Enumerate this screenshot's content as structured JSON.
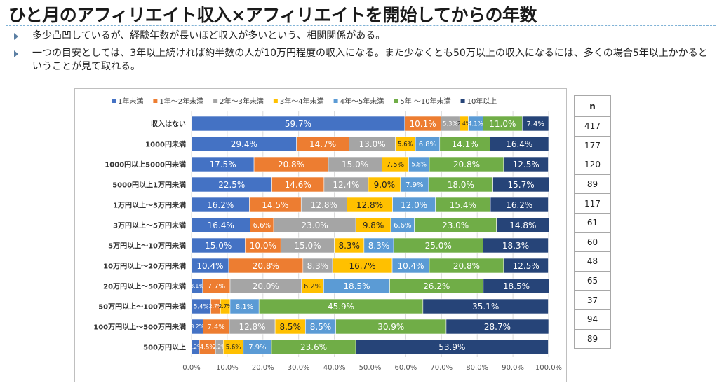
{
  "title": "ひと月のアフィリエイト収入×アフィリエイトを開始してからの年数",
  "bullets": [
    "多少凸凹しているが、経験年数が長いほど収入が多いという、相関関係がある。",
    "一つの目安としては、3年以上続ければ約半数の人が10万円程度の収入になる。また少なくとも50万以上の収入になるには、多くの場合5年以上かかるということが見て取れる。"
  ],
  "n_table": {
    "header": "n",
    "values": [
      "417",
      "177",
      "120",
      "89",
      "117",
      "61",
      "60",
      "48",
      "65",
      "37",
      "94",
      "89"
    ]
  },
  "colors": [
    "#4472c4",
    "#ed7d31",
    "#a5a5a5",
    "#ffc000",
    "#5b9bd5",
    "#70ad47",
    "#264478"
  ],
  "chart_data": {
    "type": "bar",
    "orientation": "horizontal",
    "stacked": "percent",
    "categories": [
      "収入はない",
      "1000円未満",
      "1000円以上5000円未満",
      "5000円以上1万円未満",
      "1万円以上～3万円未満",
      "3万円以上～5万円未満",
      "5万円以上～10万円未満",
      "10万円以上～20万円未満",
      "20万円以上～50万円未満",
      "50万円以上～100万円未満",
      "100万円以上～500万円未満",
      "500万円以上"
    ],
    "series": [
      {
        "name": "1年未満",
        "values": [
          59.7,
          29.4,
          17.5,
          22.5,
          16.2,
          16.4,
          15.0,
          10.4,
          3.1,
          5.4,
          3.2,
          2.2
        ],
        "labels": [
          "59.7%",
          "29.4%",
          "17.5%",
          "22.5%",
          "16.2%",
          "16.4%",
          "15.0%",
          "10.4%",
          "3.1%",
          "5.4%",
          "3.2%",
          "2.2%"
        ]
      },
      {
        "name": "1年～2年未満",
        "values": [
          10.1,
          14.7,
          20.8,
          14.6,
          14.5,
          6.6,
          10.0,
          20.8,
          7.7,
          2.7,
          7.4,
          4.5
        ],
        "labels": [
          "10.1%",
          "14.7%",
          "20.8%",
          "14.6%",
          "14.5%",
          "6.6%",
          "10.0%",
          "20.8%",
          "7.7%",
          "2.7%",
          "7.4%",
          "4.5%"
        ]
      },
      {
        "name": "2年～3年未満",
        "values": [
          5.3,
          13.0,
          15.0,
          12.4,
          12.8,
          23.0,
          15.0,
          8.3,
          20.0,
          0,
          12.8,
          2.2
        ],
        "labels": [
          "5.3%",
          "13.0%",
          "15.0%",
          "12.4%",
          "12.8%",
          "23.0%",
          "15.0%",
          "8.3%",
          "20.0%",
          "",
          "12.8%",
          "2.2%"
        ]
      },
      {
        "name": "3年～4年未満",
        "values": [
          2.4,
          5.6,
          7.5,
          9.0,
          12.8,
          9.8,
          8.3,
          16.7,
          6.2,
          2.7,
          8.5,
          5.6
        ],
        "labels": [
          "2.4%",
          "5.6%",
          "7.5%",
          "9.0%",
          "12.8%",
          "9.8%",
          "8.3%",
          "16.7%",
          "6.2%",
          "2.7%",
          "8.5%",
          "5.6%"
        ]
      },
      {
        "name": "4年～5年未満",
        "values": [
          4.1,
          6.8,
          5.8,
          7.9,
          12.0,
          6.6,
          8.3,
          10.4,
          18.5,
          8.1,
          8.5,
          7.9
        ],
        "labels": [
          "4.1%",
          "6.8%",
          "5.8%",
          "7.9%",
          "12.0%",
          "6.6%",
          "8.3%",
          "10.4%",
          "18.5%",
          "8.1%",
          "8.5%",
          "7.9%"
        ]
      },
      {
        "name": "5年 ～10年未満",
        "values": [
          11.0,
          14.1,
          20.8,
          18.0,
          15.4,
          23.0,
          25.0,
          20.8,
          26.2,
          45.9,
          30.9,
          23.6
        ],
        "labels": [
          "11.0%",
          "14.1%",
          "20.8%",
          "18.0%",
          "15.4%",
          "23.0%",
          "25.0%",
          "20.8%",
          "26.2%",
          "45.9%",
          "30.9%",
          "23.6%"
        ]
      },
      {
        "name": "10年以上",
        "values": [
          7.4,
          16.4,
          12.5,
          15.7,
          16.2,
          14.8,
          18.3,
          12.5,
          18.5,
          35.1,
          28.7,
          53.9
        ],
        "labels": [
          "7.4%",
          "16.4%",
          "12.5%",
          "15.7%",
          "16.2%",
          "14.8%",
          "18.3%",
          "12.5%",
          "18.5%",
          "35.1%",
          "28.7%",
          "53.9%"
        ]
      }
    ],
    "x_ticks": [
      "0.0%",
      "10.0%",
      "20.0%",
      "30.0%",
      "40.0%",
      "50.0%",
      "60.0%",
      "70.0%",
      "80.0%",
      "90.0%",
      "100.0%"
    ],
    "xlim": [
      0,
      100
    ],
    "legend": "top",
    "grid": true
  }
}
